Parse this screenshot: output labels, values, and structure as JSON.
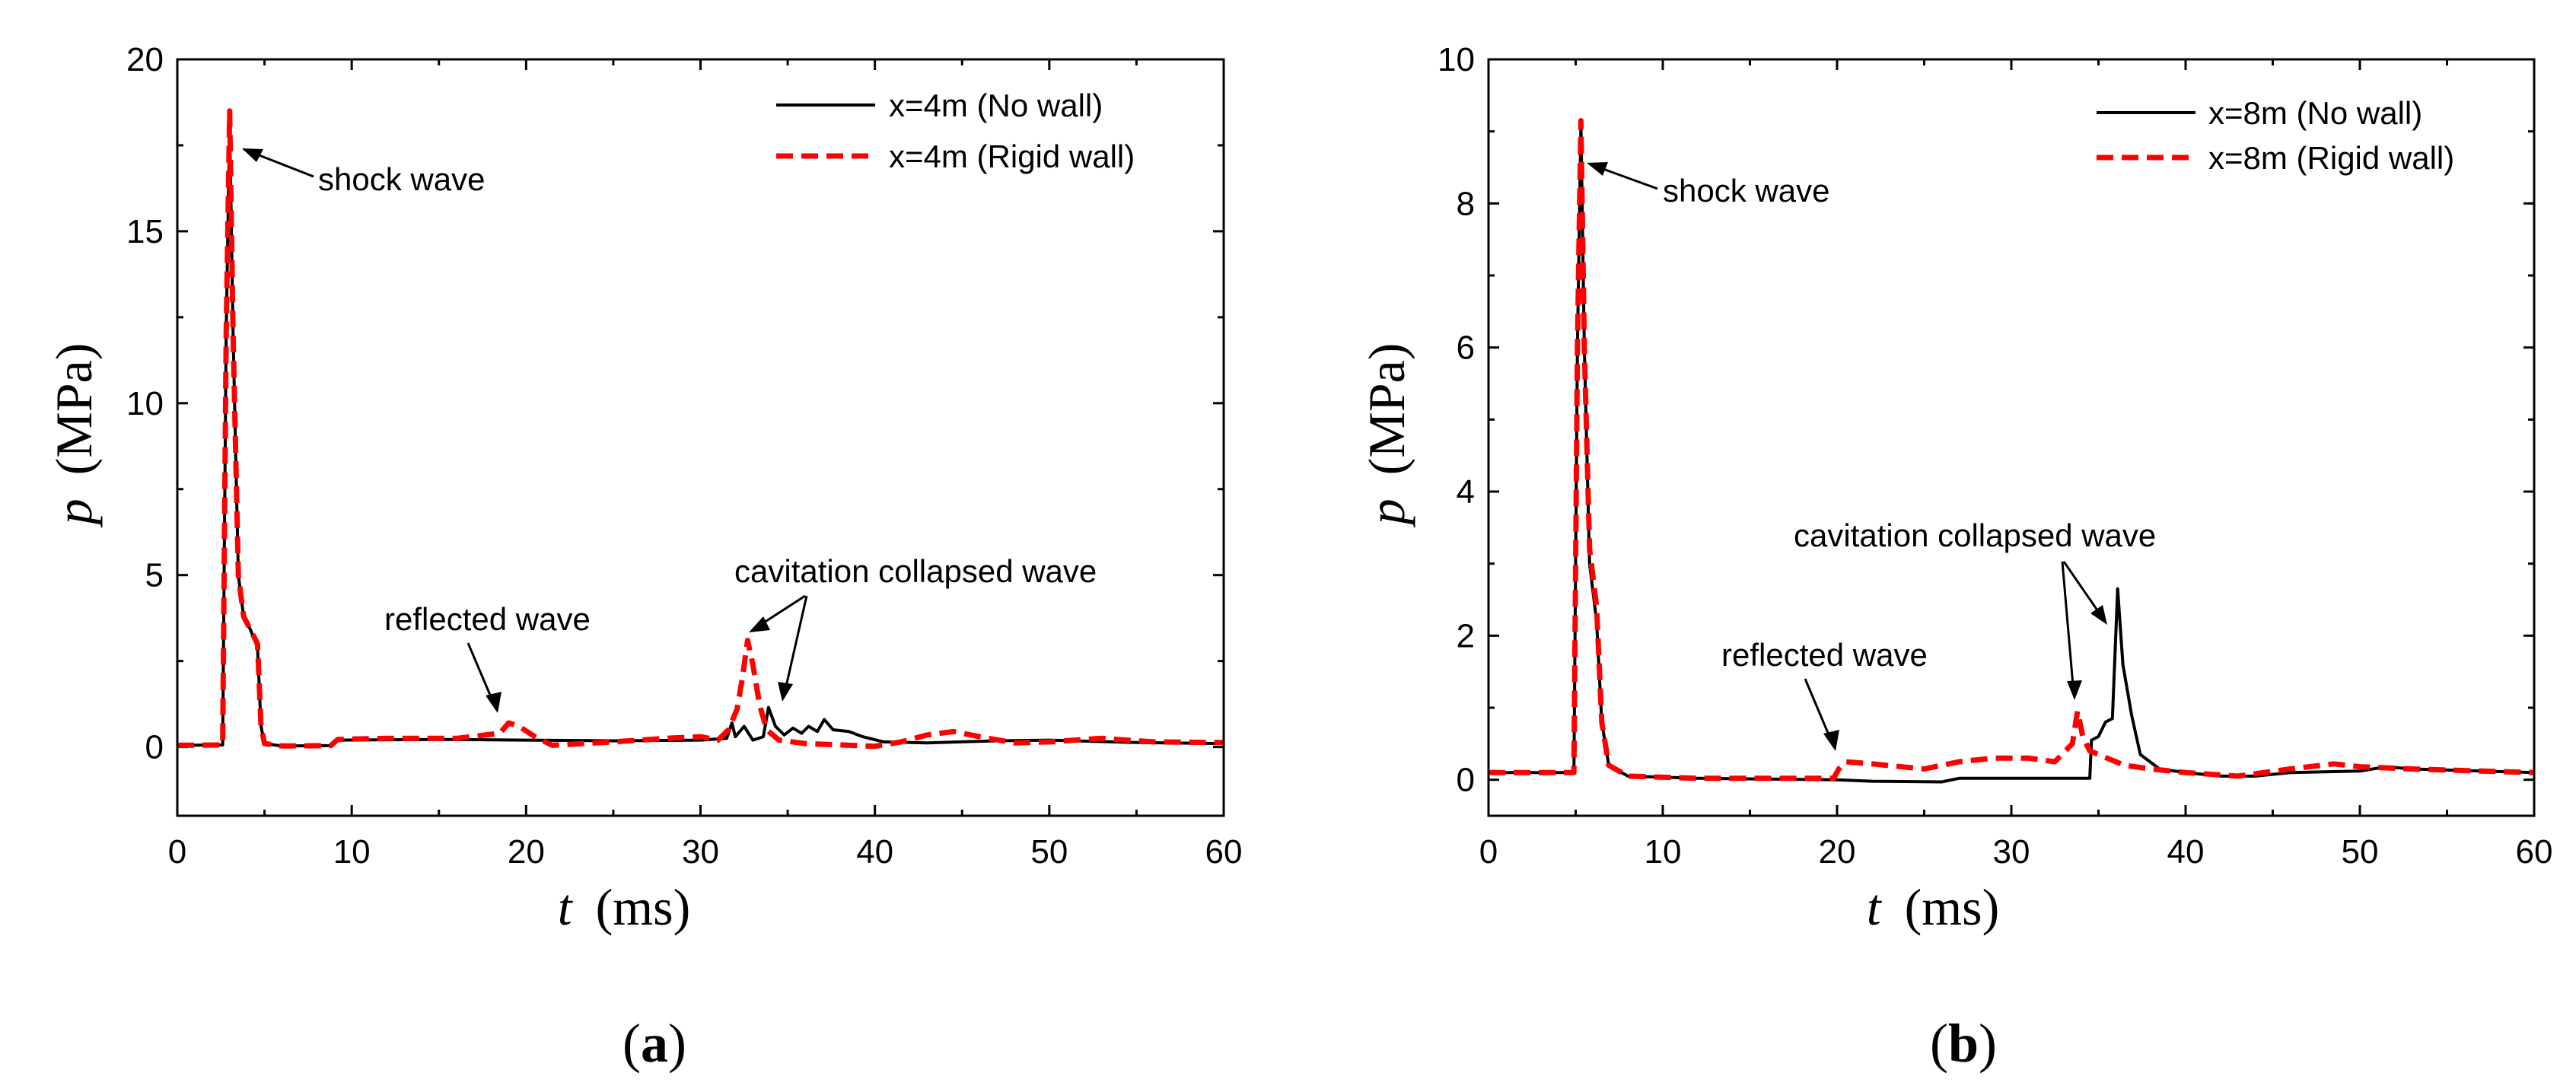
{
  "chart_data": [
    {
      "type": "line",
      "panel_label": "a",
      "xlabel_var": "t",
      "xlabel_unit": "(ms)",
      "ylabel_var": "p",
      "ylabel_unit": "(MPa)",
      "xlim": [
        0,
        60
      ],
      "ylim": [
        -2,
        20
      ],
      "xticks": [
        0,
        10,
        20,
        30,
        40,
        50,
        60
      ],
      "yticks": [
        0,
        5,
        10,
        15,
        20
      ],
      "legend_position": "top-right",
      "series": [
        {
          "name": "x=4m (No wall)",
          "color": "#000000",
          "dash": "solid",
          "points": [
            [
              0,
              0.05
            ],
            [
              2.6,
              0.06
            ],
            [
              2.8,
              12
            ],
            [
              3.0,
              18.2
            ],
            [
              3.2,
              12
            ],
            [
              3.5,
              5
            ],
            [
              3.8,
              3.8
            ],
            [
              4.2,
              3.4
            ],
            [
              4.6,
              2.9
            ],
            [
              4.8,
              0.6
            ],
            [
              5.0,
              0.1
            ],
            [
              6,
              0.03
            ],
            [
              8.8,
              0.04
            ],
            [
              9.2,
              0.2
            ],
            [
              15,
              0.22
            ],
            [
              20,
              0.2
            ],
            [
              25,
              0.18
            ],
            [
              30,
              0.2
            ],
            [
              31.5,
              0.25
            ],
            [
              31.8,
              0.7
            ],
            [
              32.0,
              0.3
            ],
            [
              32.5,
              0.6
            ],
            [
              33.0,
              0.2
            ],
            [
              33.6,
              0.3
            ],
            [
              33.9,
              1.15
            ],
            [
              34.3,
              0.6
            ],
            [
              34.8,
              0.35
            ],
            [
              35.3,
              0.55
            ],
            [
              35.8,
              0.4
            ],
            [
              36.2,
              0.6
            ],
            [
              36.7,
              0.45
            ],
            [
              37.1,
              0.8
            ],
            [
              37.6,
              0.5
            ],
            [
              38.5,
              0.45
            ],
            [
              39.3,
              0.3
            ],
            [
              40.5,
              0.15
            ],
            [
              43,
              0.12
            ],
            [
              47,
              0.18
            ],
            [
              50,
              0.2
            ],
            [
              55,
              0.13
            ],
            [
              60,
              0.1
            ]
          ]
        },
        {
          "name": "x=4m (Rigid wall)",
          "color": "#ff0000",
          "dash": "dashed",
          "points": [
            [
              0,
              0.05
            ],
            [
              2.6,
              0.06
            ],
            [
              2.8,
              12
            ],
            [
              3.0,
              18.5
            ],
            [
              3.2,
              12
            ],
            [
              3.5,
              5
            ],
            [
              3.8,
              3.8
            ],
            [
              4.2,
              3.4
            ],
            [
              4.6,
              3.0
            ],
            [
              4.8,
              0.6
            ],
            [
              5.0,
              0.1
            ],
            [
              6,
              0.03
            ],
            [
              8.8,
              0.04
            ],
            [
              9.2,
              0.22
            ],
            [
              12,
              0.25
            ],
            [
              16,
              0.25
            ],
            [
              18.5,
              0.4
            ],
            [
              19,
              0.7
            ],
            [
              19.6,
              0.6
            ],
            [
              20.5,
              0.3
            ],
            [
              21.5,
              0.05
            ],
            [
              25,
              0.15
            ],
            [
              28,
              0.25
            ],
            [
              30,
              0.3
            ],
            [
              31,
              0.2
            ],
            [
              31.6,
              0.5
            ],
            [
              32.1,
              1.1
            ],
            [
              32.4,
              2.0
            ],
            [
              32.7,
              3.1
            ],
            [
              33.0,
              2.4
            ],
            [
              33.4,
              1.2
            ],
            [
              33.8,
              0.5
            ],
            [
              34.5,
              0.2
            ],
            [
              36,
              0.1
            ],
            [
              40,
              0.02
            ],
            [
              41.5,
              0.15
            ],
            [
              43,
              0.35
            ],
            [
              44.5,
              0.45
            ],
            [
              46,
              0.3
            ],
            [
              48,
              0.12
            ],
            [
              50,
              0.15
            ],
            [
              53,
              0.25
            ],
            [
              56,
              0.15
            ],
            [
              60,
              0.13
            ]
          ]
        }
      ],
      "annotations": [
        "shock wave",
        "reflected wave",
        "cavitation collapsed wave"
      ]
    },
    {
      "type": "line",
      "panel_label": "b",
      "xlabel_var": "t",
      "xlabel_unit": "(ms)",
      "ylabel_var": "p",
      "ylabel_unit": "(MPa)",
      "xlim": [
        0,
        60
      ],
      "ylim": [
        -0.5,
        10
      ],
      "xticks": [
        0,
        10,
        20,
        30,
        40,
        50,
        60
      ],
      "yticks": [
        0,
        2,
        4,
        6,
        8,
        10
      ],
      "legend_position": "top-right",
      "series": [
        {
          "name": "x=8m  (No wall)",
          "color": "#000000",
          "dash": "solid",
          "points": [
            [
              0,
              0.1
            ],
            [
              4.9,
              0.1
            ],
            [
              5.1,
              6
            ],
            [
              5.3,
              9.1
            ],
            [
              5.5,
              6
            ],
            [
              5.8,
              3.0
            ],
            [
              6.2,
              2.2
            ],
            [
              6.5,
              0.8
            ],
            [
              6.9,
              0.2
            ],
            [
              8,
              0.05
            ],
            [
              12,
              0.02
            ],
            [
              20,
              0.0
            ],
            [
              22,
              -0.02
            ],
            [
              26,
              -0.03
            ],
            [
              27,
              0.02
            ],
            [
              30,
              0.02
            ],
            [
              34.5,
              0.02
            ],
            [
              34.6,
              0.55
            ],
            [
              35,
              0.6
            ],
            [
              35.4,
              0.8
            ],
            [
              35.8,
              0.85
            ],
            [
              36.1,
              2.65
            ],
            [
              36.4,
              1.6
            ],
            [
              36.9,
              0.9
            ],
            [
              37.4,
              0.35
            ],
            [
              38.5,
              0.15
            ],
            [
              40,
              0.1
            ],
            [
              42,
              0.05
            ],
            [
              44,
              0.05
            ],
            [
              46,
              0.1
            ],
            [
              50,
              0.12
            ],
            [
              51.5,
              0.18
            ],
            [
              53,
              0.15
            ],
            [
              57,
              0.12
            ],
            [
              60,
              0.1
            ]
          ]
        },
        {
          "name": "x=8m (Rigid wall)",
          "color": "#ff0000",
          "dash": "dashed",
          "points": [
            [
              0,
              0.1
            ],
            [
              4.9,
              0.1
            ],
            [
              5.1,
              6
            ],
            [
              5.3,
              9.15
            ],
            [
              5.5,
              6
            ],
            [
              5.8,
              3.2
            ],
            [
              6.2,
              2.4
            ],
            [
              6.5,
              0.8
            ],
            [
              6.9,
              0.2
            ],
            [
              8,
              0.05
            ],
            [
              12,
              0.02
            ],
            [
              19.8,
              0.02
            ],
            [
              20.1,
              0.15
            ],
            [
              20.5,
              0.25
            ],
            [
              22,
              0.22
            ],
            [
              25,
              0.15
            ],
            [
              27,
              0.25
            ],
            [
              29,
              0.3
            ],
            [
              31,
              0.3
            ],
            [
              32.5,
              0.25
            ],
            [
              33.5,
              0.5
            ],
            [
              33.8,
              0.95
            ],
            [
              34.1,
              0.6
            ],
            [
              34.5,
              0.4
            ],
            [
              35.5,
              0.3
            ],
            [
              36.5,
              0.2
            ],
            [
              38,
              0.15
            ],
            [
              40,
              0.1
            ],
            [
              43,
              0.05
            ],
            [
              46,
              0.15
            ],
            [
              48.5,
              0.22
            ],
            [
              50,
              0.18
            ],
            [
              53,
              0.15
            ],
            [
              57,
              0.12
            ],
            [
              60,
              0.1
            ]
          ]
        }
      ],
      "annotations": [
        "shock wave",
        "reflected wave",
        "cavitation collapsed wave"
      ]
    }
  ]
}
